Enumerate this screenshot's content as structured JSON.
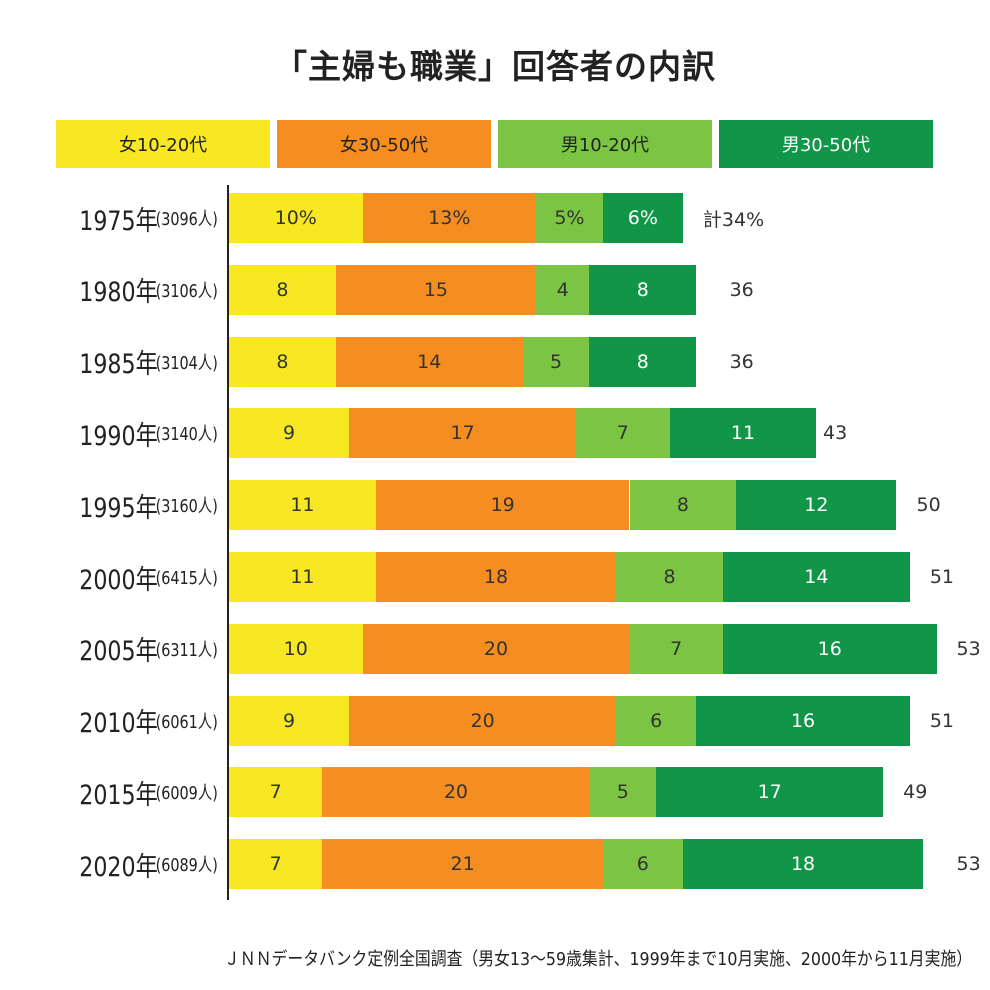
{
  "chart_data": {
    "type": "bar",
    "orientation": "horizontal",
    "stacked": true,
    "title": "「主婦も職業」回答者の内訳",
    "series": [
      {
        "name": "女10-20代",
        "color": "#f7e823"
      },
      {
        "name": "女30-50代",
        "color": "#f68d20"
      },
      {
        "name": "男10-20代",
        "color": "#7cc544"
      },
      {
        "name": "男30-50代",
        "color": "#119548"
      }
    ],
    "rows": [
      {
        "year": "1975年",
        "count": "(3096人)",
        "values": [
          10,
          13,
          5,
          6
        ],
        "labels": [
          "10%",
          "13%",
          "5%",
          "6%"
        ],
        "total": 34,
        "total_label": "計34%"
      },
      {
        "year": "1980年",
        "count": "(3106人)",
        "values": [
          8,
          15,
          4,
          8
        ],
        "labels": [
          "8",
          "15",
          "4",
          "8"
        ],
        "total": 36,
        "total_label": "36"
      },
      {
        "year": "1985年",
        "count": "(3104人)",
        "values": [
          8,
          14,
          5,
          8
        ],
        "labels": [
          "8",
          "14",
          "5",
          "8"
        ],
        "total": 36,
        "total_label": "36"
      },
      {
        "year": "1990年",
        "count": "(3140人)",
        "values": [
          9,
          17,
          7,
          11
        ],
        "labels": [
          "9",
          "17",
          "7",
          "11"
        ],
        "total": 43,
        "total_label": "43"
      },
      {
        "year": "1995年",
        "count": "(3160人)",
        "values": [
          11,
          19,
          8,
          12
        ],
        "labels": [
          "11",
          "19",
          "8",
          "12"
        ],
        "total": 50,
        "total_label": "50"
      },
      {
        "year": "2000年",
        "count": "(6415人)",
        "values": [
          11,
          18,
          8,
          14
        ],
        "labels": [
          "11",
          "18",
          "8",
          "14"
        ],
        "total": 51,
        "total_label": "51"
      },
      {
        "year": "2005年",
        "count": "(6311人)",
        "values": [
          10,
          20,
          7,
          16
        ],
        "labels": [
          "10",
          "20",
          "7",
          "16"
        ],
        "total": 53,
        "total_label": "53"
      },
      {
        "year": "2010年",
        "count": "(6061人)",
        "values": [
          9,
          20,
          6,
          16
        ],
        "labels": [
          "9",
          "20",
          "6",
          "16"
        ],
        "total": 51,
        "total_label": "51"
      },
      {
        "year": "2015年",
        "count": "(6009人)",
        "values": [
          7,
          20,
          5,
          17
        ],
        "labels": [
          "7",
          "20",
          "5",
          "17"
        ],
        "total": 49,
        "total_label": "49"
      },
      {
        "year": "2020年",
        "count": "(6089人)",
        "values": [
          7,
          21,
          6,
          18
        ],
        "labels": [
          "7",
          "21",
          "6",
          "18"
        ],
        "total": 53,
        "total_label": "53"
      }
    ],
    "unit": "%",
    "legend_position": "top",
    "grid": false
  },
  "footnote": "ＪＮＮデータバンク定例全国調査（男女13～59歳集計、1999年まで10月実施、2000年から11月実施）"
}
